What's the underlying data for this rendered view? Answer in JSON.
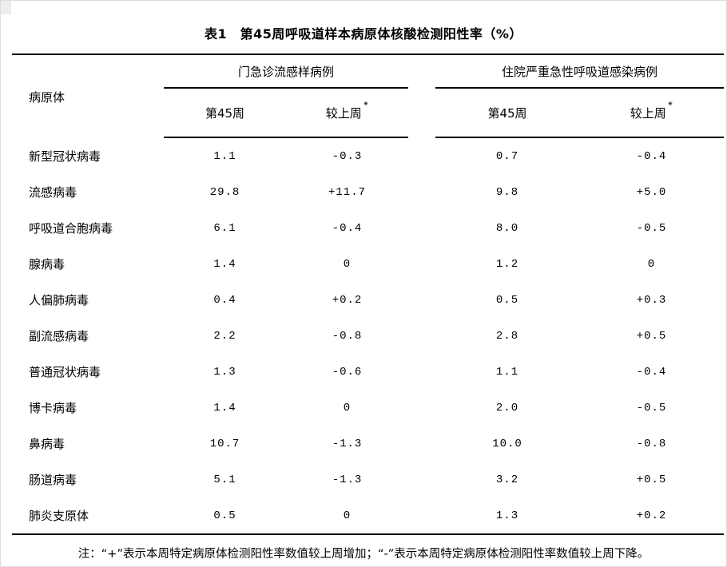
{
  "page": {
    "title": "表1　第45周呼吸道样本病原体核酸检测阳性率（%）",
    "note": "注：“+”表示本周特定病原体检测阳性率数值较上周增加；“-”表示本周特定病原体检测阳性率数值较上周下降。"
  },
  "table": {
    "pathogen_header": "病原体",
    "groups": [
      {
        "label": "门急诊流感样病例"
      },
      {
        "label": "住院严重急性呼吸道感染病例"
      }
    ],
    "subheaders": {
      "week": "第45周",
      "delta": "较上周",
      "delta_mark": "*"
    },
    "rows": [
      {
        "name": "新型冠状病毒",
        "ili_week": "1.1",
        "ili_delta": "-0.3",
        "sari_week": "0.7",
        "sari_delta": "-0.4"
      },
      {
        "name": "流感病毒",
        "ili_week": "29.8",
        "ili_delta": "+11.7",
        "sari_week": "9.8",
        "sari_delta": "+5.0"
      },
      {
        "name": "呼吸道合胞病毒",
        "ili_week": "6.1",
        "ili_delta": "-0.4",
        "sari_week": "8.0",
        "sari_delta": "-0.5"
      },
      {
        "name": "腺病毒",
        "ili_week": "1.4",
        "ili_delta": "0",
        "sari_week": "1.2",
        "sari_delta": "0"
      },
      {
        "name": "人偏肺病毒",
        "ili_week": "0.4",
        "ili_delta": "+0.2",
        "sari_week": "0.5",
        "sari_delta": "+0.3"
      },
      {
        "name": "副流感病毒",
        "ili_week": "2.2",
        "ili_delta": "-0.8",
        "sari_week": "2.8",
        "sari_delta": "+0.5"
      },
      {
        "name": "普通冠状病毒",
        "ili_week": "1.3",
        "ili_delta": "-0.6",
        "sari_week": "1.1",
        "sari_delta": "-0.4"
      },
      {
        "name": "博卡病毒",
        "ili_week": "1.4",
        "ili_delta": "0",
        "sari_week": "2.0",
        "sari_delta": "-0.5"
      },
      {
        "name": "鼻病毒",
        "ili_week": "10.7",
        "ili_delta": "-1.3",
        "sari_week": "10.0",
        "sari_delta": "-0.8"
      },
      {
        "name": "肠道病毒",
        "ili_week": "5.1",
        "ili_delta": "-1.3",
        "sari_week": "3.2",
        "sari_delta": "+0.5"
      },
      {
        "name": "肺炎支原体",
        "ili_week": "0.5",
        "ili_delta": "0",
        "sari_week": "1.3",
        "sari_delta": "+0.2"
      }
    ]
  },
  "colors": {
    "background": "#ffffff",
    "text": "#000000",
    "rule": "#000000",
    "page_border": "#dcdcdc"
  }
}
